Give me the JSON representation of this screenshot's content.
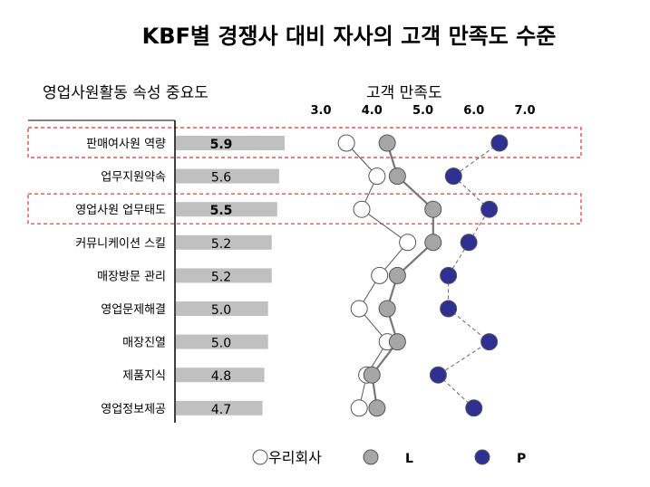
{
  "title": "KBF별 경쟁사 대비 자사의 고객 만족도 수준",
  "left_header": "영업사원활동 속성 중요도",
  "right_header": "고객 만족도",
  "chart_data": [
    {
      "type": "bar",
      "orientation": "horizontal",
      "title": "영업사원활동 속성 중요도",
      "categories": [
        "판매여사원 역량",
        "업무지원약속",
        "영업사원 업무태도",
        "커뮤니케이션 스킬",
        "매장방문 관리",
        "영업문제해결",
        "매장진열",
        "제품지식",
        "영업정보제공"
      ],
      "values": [
        5.9,
        5.6,
        5.5,
        5.2,
        5.2,
        5.0,
        5.0,
        4.8,
        4.7
      ],
      "value_labels": [
        "5.9",
        "5.6",
        "5.5",
        "5.2",
        "5.2",
        "5.0",
        "5.0",
        "4.8",
        "4.7"
      ],
      "bold_labels": [
        true,
        false,
        true,
        false,
        false,
        false,
        false,
        false,
        false
      ],
      "highlighted_categories": [
        "판매여사원 역량",
        "영업사원 업무태도"
      ],
      "bar_color": "#c0c0c0",
      "highlight_border_color": "#e03030"
    },
    {
      "type": "line",
      "title": "고객 만족도",
      "categories": [
        "판매여사원 역량",
        "업무지원약속",
        "영업사원 업무태도",
        "커뮤니케이션 스킬",
        "매장방문 관리",
        "영업문제해결",
        "매장진열",
        "제품지식",
        "영업정보제공"
      ],
      "x_ticks": [
        "3.0",
        "4.0",
        "5.0",
        "6.0",
        "7.0"
      ],
      "xlim": [
        3.0,
        7.0
      ],
      "series": [
        {
          "name": "우리회사",
          "values": [
            3.5,
            4.1,
            3.8,
            4.7,
            4.15,
            3.75,
            4.3,
            3.9,
            3.75
          ],
          "color": "#ffffff",
          "stroke": "#555555",
          "line": "solid-thin"
        },
        {
          "name": "L",
          "values": [
            4.3,
            4.5,
            5.2,
            5.2,
            4.5,
            4.3,
            4.5,
            4.0,
            4.1
          ],
          "color": "#a6a6a6",
          "stroke": "#777777",
          "line": "solid-thick"
        },
        {
          "name": "P",
          "values": [
            6.5,
            5.6,
            6.3,
            5.9,
            5.5,
            5.5,
            6.3,
            5.3,
            6.0
          ],
          "color": "#2e3192",
          "stroke": "#666666",
          "line": "dashed"
        }
      ],
      "legend_position": "bottom"
    }
  ]
}
